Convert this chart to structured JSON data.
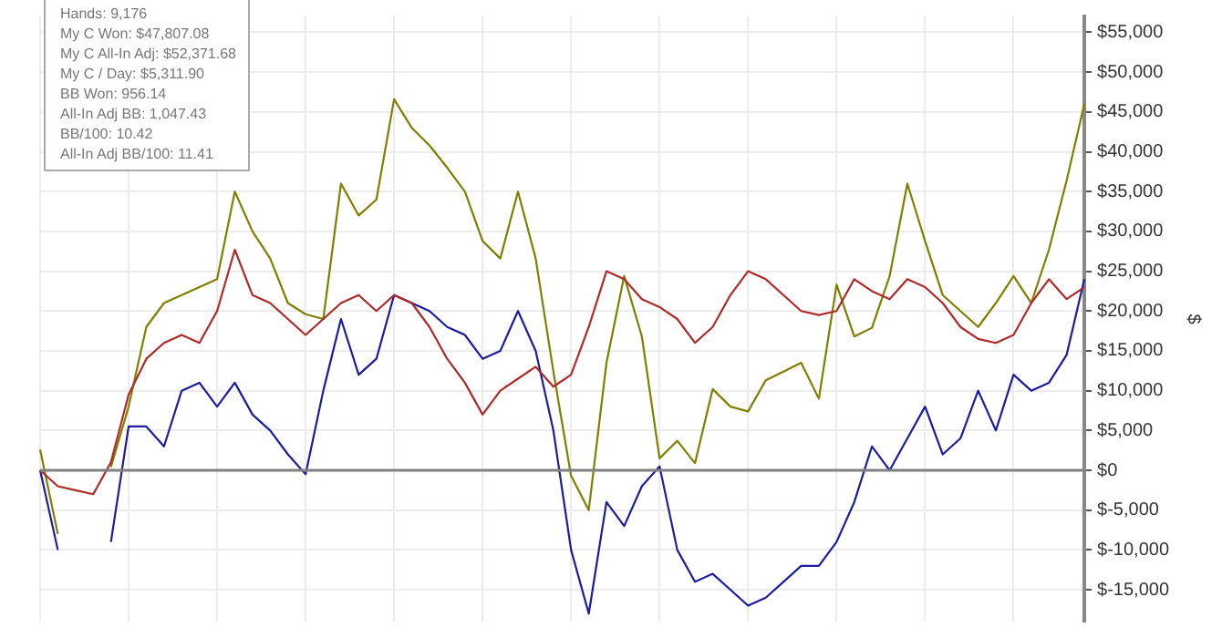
{
  "chart_data": {
    "type": "line",
    "ylabel": "$",
    "categories": [
      null,
      null,
      null,
      null,
      null,
      null,
      null,
      null,
      null,
      null,
      null,
      null,
      null,
      null,
      null,
      null,
      null,
      null,
      null,
      null,
      null,
      null,
      null,
      null,
      null,
      null,
      null,
      null,
      null,
      null,
      null,
      null,
      null,
      null,
      null,
      null,
      null,
      null,
      null,
      null,
      null,
      null,
      null,
      null,
      null,
      null,
      null,
      null,
      null,
      null,
      null,
      null,
      null,
      null,
      null,
      null,
      null,
      null,
      null,
      null
    ],
    "series": [
      {
        "color": "#b02a2a",
        "values": [
          0,
          -2000,
          -2500,
          -3000,
          1000,
          9500,
          14000,
          16000,
          17000,
          16000,
          20000,
          27700,
          22000,
          21000,
          19000,
          17000,
          19000,
          21000,
          22000,
          20000,
          22000,
          21000,
          18000,
          14000,
          11000,
          7000,
          10000,
          11500,
          13000,
          10500,
          12000,
          18000,
          25000,
          24000,
          21500,
          20500,
          19000,
          16000,
          18000,
          22000,
          25000,
          24000,
          22000,
          20000,
          19500,
          20000,
          24000,
          22500,
          21500,
          24000,
          23000,
          21000,
          18000,
          16500,
          16000,
          17000,
          21000,
          24000,
          21500,
          23000
        ]
      },
      {
        "color": "#1c1ca0",
        "values": [
          0,
          -10000,
          null,
          null,
          -9000,
          5500,
          5500,
          3000,
          10000,
          11000,
          8000,
          11000,
          7000,
          5000,
          2000,
          -500,
          10000,
          19000,
          12000,
          14000,
          22000,
          21000,
          20000,
          18000,
          17000,
          14000,
          15000,
          20000,
          15000,
          5000,
          -10000,
          -18000,
          -4000,
          -7000,
          -2000,
          500,
          -10000,
          -14000,
          -13000,
          -15000,
          -17000,
          -16000,
          -14000,
          -12000,
          -12000,
          -9000,
          -4000,
          3000,
          0,
          4000,
          8000,
          2000,
          4000,
          10000,
          5000,
          12000,
          10000,
          11000,
          14500,
          24000
        ]
      },
      {
        "color": "#808000",
        "values": [
          2600,
          -8000,
          null,
          null,
          400,
          8000,
          18000,
          21000,
          22000,
          23000,
          24000,
          35000,
          30000,
          26600,
          21000,
          19600,
          19000,
          36000,
          32000,
          34000,
          46600,
          43000,
          40800,
          38000,
          35000,
          28800,
          26600,
          35000,
          26600,
          12400,
          -700,
          -5000,
          13500,
          24400,
          16800,
          1500,
          3700,
          900,
          10200,
          8000,
          7400,
          11300,
          12400,
          13500,
          9000,
          23300,
          16800,
          17900,
          24400,
          36000,
          28800,
          22000,
          20000,
          18000,
          21000,
          24400,
          21000,
          27700,
          36400,
          46000
        ]
      }
    ],
    "ylim": [
      -19000,
      57000
    ],
    "yticks": [
      {
        "value": -15000,
        "label": "$-15,000"
      },
      {
        "value": -10000,
        "label": "$-10,000"
      },
      {
        "value": -5000,
        "label": "$-5,000"
      },
      {
        "value": 0,
        "label": "$0"
      },
      {
        "value": 5000,
        "label": "$5,000"
      },
      {
        "value": 10000,
        "label": "$10,000"
      },
      {
        "value": 15000,
        "label": "$15,000"
      },
      {
        "value": 20000,
        "label": "$20,000"
      },
      {
        "value": 25000,
        "label": "$25,000"
      },
      {
        "value": 30000,
        "label": "$30,000"
      },
      {
        "value": 35000,
        "label": "$35,000"
      },
      {
        "value": 40000,
        "label": "$40,000"
      },
      {
        "value": 45000,
        "label": "$45,000"
      },
      {
        "value": 50000,
        "label": "$50,000"
      },
      {
        "value": 55000,
        "label": "$55,000"
      }
    ],
    "ref_lines": [
      {
        "axis": "y",
        "value": 0,
        "color": "#808080"
      }
    ],
    "grid": true,
    "legend": false,
    "marker": "none",
    "line_style": "solid",
    "tick_labels": "y",
    "annotations": [
      "Hands: 9,176",
      "My C Won: $47,807.08",
      "My C All-In Adj: $52,371.68",
      "My C / Day: $5,311.90",
      "BB Won: 956.14",
      "All-In Adj BB: 1,047.43",
      "BB/100: 10.42",
      "All-In Adj BB/100: 11.41"
    ]
  }
}
